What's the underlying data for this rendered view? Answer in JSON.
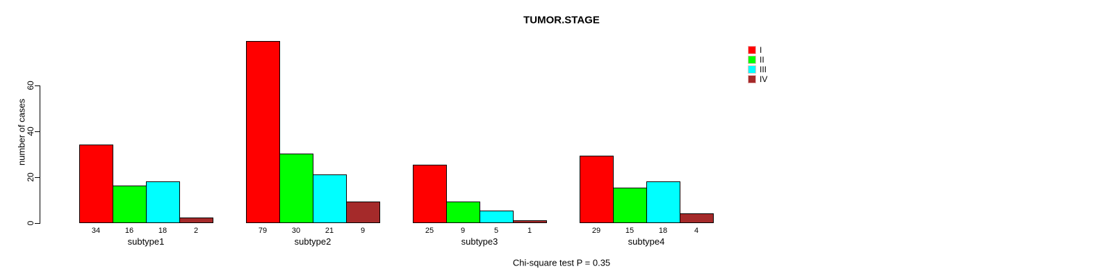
{
  "chart_data": {
    "type": "bar",
    "title": "TUMOR.STAGE",
    "ylabel": "number of cases",
    "xlabel": "",
    "note": "Chi-square test P = 0.35",
    "categories": [
      "subtype1",
      "subtype2",
      "subtype3",
      "subtype4"
    ],
    "series": [
      {
        "name": "I",
        "color": "#ff0000",
        "values": [
          34,
          79,
          25,
          29
        ]
      },
      {
        "name": "II",
        "color": "#00ff00",
        "values": [
          16,
          30,
          9,
          15
        ]
      },
      {
        "name": "III",
        "color": "#00ffff",
        "values": [
          18,
          21,
          5,
          18
        ]
      },
      {
        "name": "IV",
        "color": "#a52a2a",
        "values": [
          2,
          9,
          1,
          4
        ]
      }
    ],
    "y_ticks": [
      0,
      20,
      40,
      60
    ],
    "ylim": [
      0,
      79
    ],
    "grid": false,
    "legend_position": "top-right",
    "bar_value_labels_shown": true,
    "bar_border_color": "#000000",
    "background_color": "#ffffff"
  }
}
